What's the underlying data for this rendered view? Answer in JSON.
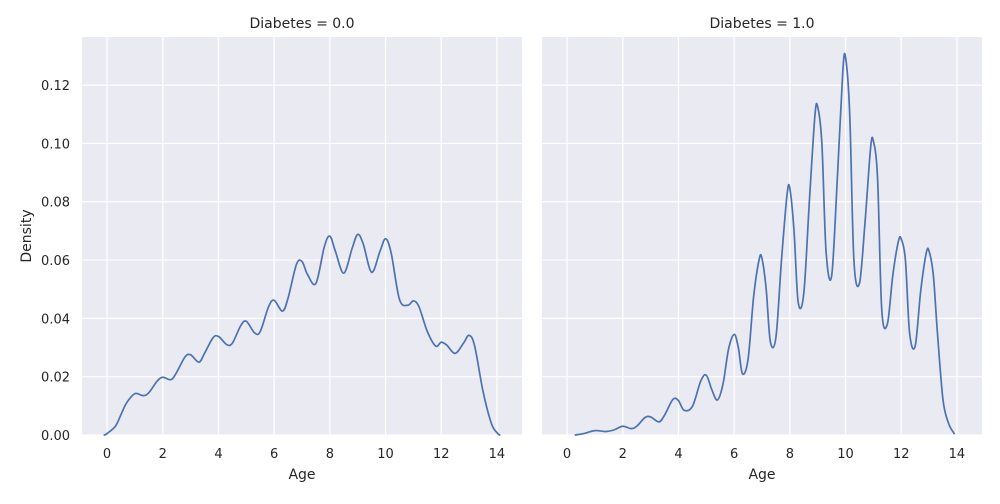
{
  "chart_data": {
    "type": "line",
    "y_label": "Density",
    "x_label": "Age",
    "xlim": [
      -0.9,
      14.9
    ],
    "ylim": [
      0,
      0.1365
    ],
    "x_ticks": [
      0,
      2,
      4,
      6,
      8,
      10,
      12,
      14
    ],
    "y_ticks": [
      0.0,
      0.02,
      0.04,
      0.06,
      0.08,
      0.1,
      0.12
    ],
    "y_tick_labels": [
      "0.00",
      "0.02",
      "0.04",
      "0.06",
      "0.08",
      "0.10",
      "0.12"
    ],
    "grid": true,
    "line_color": "#4c72b0",
    "background_color": "#eaeaf2",
    "panels": [
      {
        "title": "Diabetes = 0.0",
        "x": [
          -0.1,
          0,
          0.3,
          0.5,
          0.7,
          1.0,
          1.3,
          1.5,
          1.8,
          2.0,
          2.3,
          2.5,
          2.8,
          3.0,
          3.3,
          3.5,
          3.8,
          4.0,
          4.3,
          4.5,
          4.8,
          5.0,
          5.3,
          5.5,
          5.8,
          6.0,
          6.3,
          6.5,
          6.8,
          7.0,
          7.2,
          7.5,
          7.8,
          8.0,
          8.2,
          8.5,
          8.8,
          9.0,
          9.2,
          9.5,
          9.8,
          10.0,
          10.2,
          10.5,
          10.8,
          11.0,
          11.2,
          11.5,
          11.8,
          12.0,
          12.2,
          12.5,
          12.8,
          13.0,
          13.2,
          13.5,
          13.8,
          14.0,
          14.1
        ],
        "y": [
          0.0,
          0.0005,
          0.003,
          0.007,
          0.011,
          0.0142,
          0.0135,
          0.0145,
          0.0185,
          0.0198,
          0.019,
          0.0215,
          0.0268,
          0.0275,
          0.025,
          0.028,
          0.0333,
          0.0338,
          0.031,
          0.0315,
          0.0375,
          0.039,
          0.035,
          0.0355,
          0.044,
          0.0462,
          0.0425,
          0.047,
          0.0585,
          0.0595,
          0.055,
          0.052,
          0.0645,
          0.0682,
          0.063,
          0.0555,
          0.064,
          0.0688,
          0.0655,
          0.0558,
          0.063,
          0.0673,
          0.0625,
          0.0465,
          0.0445,
          0.046,
          0.044,
          0.0355,
          0.0305,
          0.0318,
          0.0308,
          0.028,
          0.0315,
          0.0342,
          0.0305,
          0.015,
          0.004,
          0.0008,
          0.0
        ]
      },
      {
        "title": "Diabetes = 1.0",
        "x": [
          0.3,
          0.6,
          1.0,
          1.4,
          1.7,
          2.0,
          2.3,
          2.5,
          2.8,
          3.0,
          3.3,
          3.5,
          3.8,
          4.0,
          4.2,
          4.5,
          4.8,
          5.0,
          5.2,
          5.4,
          5.6,
          5.8,
          6.0,
          6.15,
          6.3,
          6.5,
          6.7,
          6.9,
          7.0,
          7.15,
          7.3,
          7.5,
          7.7,
          7.9,
          8.0,
          8.15,
          8.3,
          8.5,
          8.7,
          8.9,
          9.0,
          9.15,
          9.3,
          9.5,
          9.7,
          9.9,
          10.0,
          10.15,
          10.3,
          10.5,
          10.7,
          10.9,
          11.0,
          11.15,
          11.3,
          11.5,
          11.7,
          11.9,
          12.0,
          12.15,
          12.3,
          12.5,
          12.7,
          12.9,
          13.0,
          13.15,
          13.3,
          13.5,
          13.7,
          13.9
        ],
        "y": [
          0.0,
          0.0005,
          0.0015,
          0.0012,
          0.0018,
          0.003,
          0.0022,
          0.003,
          0.006,
          0.0062,
          0.0045,
          0.0068,
          0.0122,
          0.0118,
          0.0085,
          0.0098,
          0.0185,
          0.0205,
          0.0155,
          0.012,
          0.0175,
          0.0295,
          0.0345,
          0.03,
          0.021,
          0.026,
          0.0475,
          0.0603,
          0.0605,
          0.05,
          0.032,
          0.0335,
          0.06,
          0.0825,
          0.0845,
          0.07,
          0.0455,
          0.0485,
          0.08,
          0.1095,
          0.1125,
          0.1,
          0.063,
          0.0545,
          0.087,
          0.1245,
          0.1295,
          0.11,
          0.06,
          0.052,
          0.073,
          0.0985,
          0.1008,
          0.088,
          0.043,
          0.038,
          0.055,
          0.0665,
          0.0672,
          0.06,
          0.035,
          0.0305,
          0.0495,
          0.0625,
          0.063,
          0.055,
          0.035,
          0.012,
          0.004,
          0.0005
        ]
      }
    ]
  }
}
